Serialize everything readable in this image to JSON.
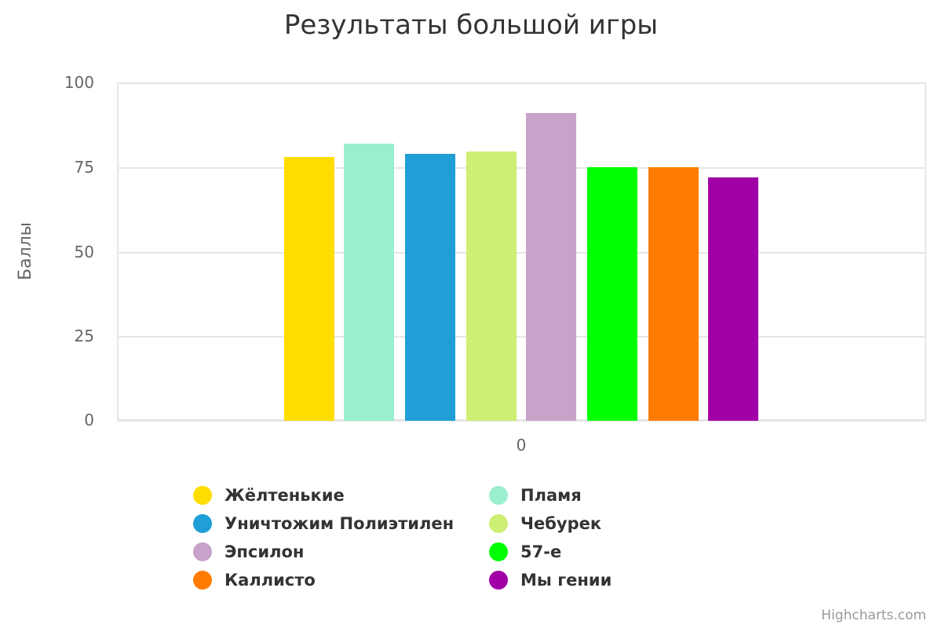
{
  "chart_data": {
    "type": "bar",
    "title": "Результаты большой игры",
    "xlabel": "",
    "ylabel": "Баллы",
    "categories": [
      "0"
    ],
    "ylim": [
      0,
      100
    ],
    "yticks": [
      "0",
      "25",
      "50",
      "75",
      "100"
    ],
    "grid": true,
    "legend_position": "bottom",
    "series": [
      {
        "name": "Жёлтенькие",
        "values": [
          78
        ],
        "color": "#FFDD00"
      },
      {
        "name": "Пламя",
        "values": [
          82
        ],
        "color": "#9AEFCE"
      },
      {
        "name": "Уничтожим Полиэтилен",
        "values": [
          79
        ],
        "color": "#1F9FD6"
      },
      {
        "name": "Чебурек",
        "values": [
          79.5
        ],
        "color": "#CDEF73"
      },
      {
        "name": "Эпсилон",
        "values": [
          91
        ],
        "color": "#C8A2C8"
      },
      {
        "name": "57-е",
        "values": [
          75
        ],
        "color": "#00FF00"
      },
      {
        "name": "Каллисто",
        "values": [
          75
        ],
        "color": "#FF7C00"
      },
      {
        "name": "Мы гении",
        "values": [
          72
        ],
        "color": "#A100A6"
      }
    ]
  },
  "credits": "Highcharts.com"
}
